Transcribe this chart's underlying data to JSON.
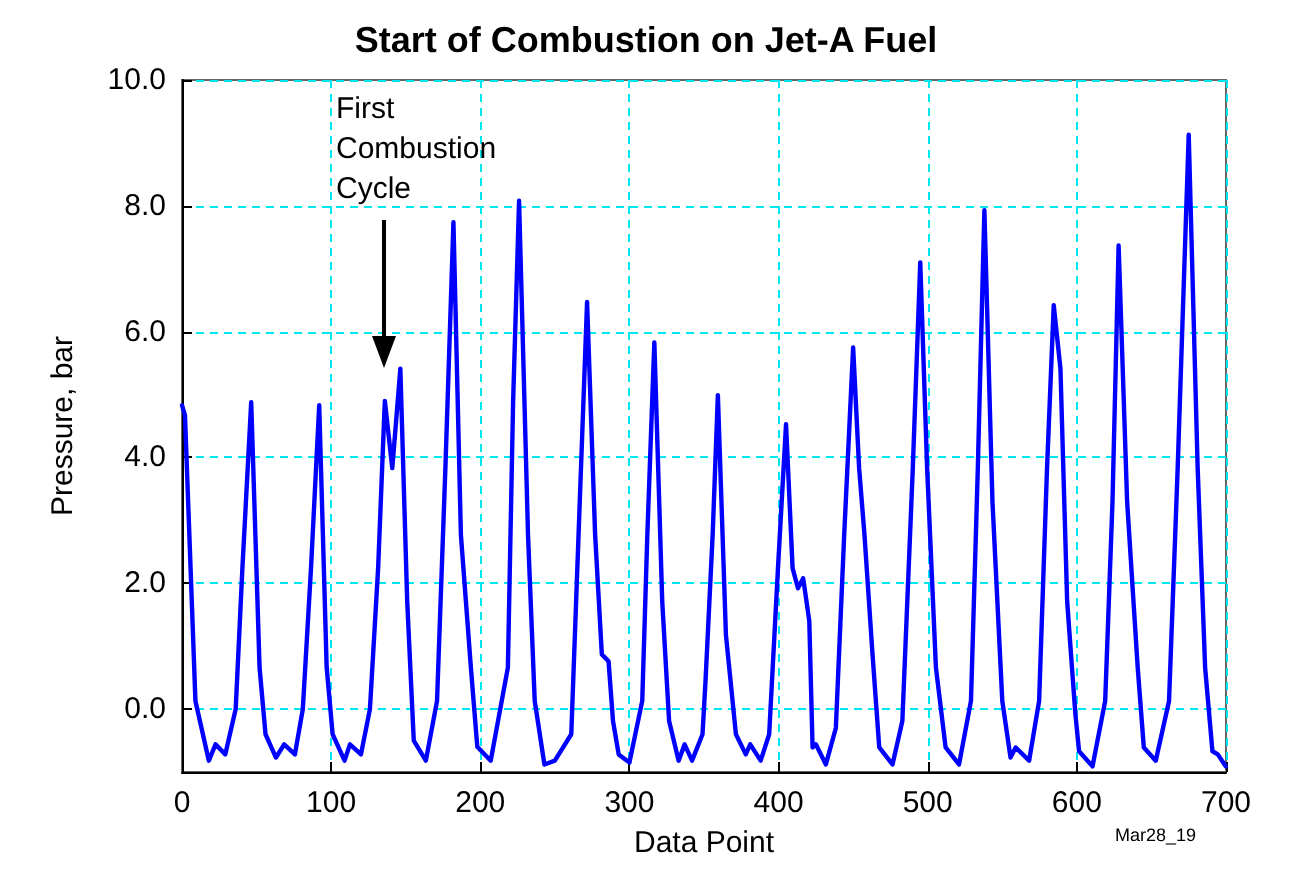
{
  "chart_data": {
    "type": "line",
    "title": "Start of Combustion on Jet-A Fuel",
    "xlabel": "Data Point",
    "ylabel": "Pressure, bar",
    "x": [
      0,
      2,
      9,
      18,
      22.5,
      29,
      36,
      40.5,
      46.4,
      52,
      56,
      63,
      68.5,
      75.7,
      81,
      86.5,
      92,
      97,
      101,
      109,
      112.6,
      120,
      126,
      131.5,
      136,
      141,
      146.4,
      151,
      155.4,
      163.5,
      171,
      176.6,
      182,
      187,
      193.7,
      198,
      207,
      218.5,
      222,
      226,
      232,
      236.5,
      243,
      250,
      261,
      266.7,
      271.6,
      277,
      281.5,
      286,
      289,
      292.8,
      300,
      308.6,
      312,
      316.7,
      322,
      326.6,
      333,
      337,
      342,
      349,
      351,
      355.8,
      359.3,
      364.7,
      371.4,
      378,
      381,
      388,
      393.7,
      399.6,
      405,
      409.4,
      413,
      416.5,
      420.6,
      422.8,
      425,
      431.7,
      438.4,
      444,
      450,
      454,
      457.6,
      463,
      467.5,
      476.4,
      483,
      490,
      495,
      499.6,
      505.5,
      512,
      521,
      529,
      533.6,
      538,
      543.4,
      550,
      555.5,
      559,
      568,
      574.7,
      580,
      584.5,
      589,
      593.5,
      599,
      601.5,
      610.5,
      619,
      623.9,
      628,
      633.7,
      640.8,
      644.9,
      652.9,
      661.8,
      667.6,
      675,
      681,
      686,
      690.9,
      694.5,
      699.8
    ],
    "series": [
      {
        "color": "#0000ff",
        "values": [
          4.83,
          4.67,
          0.13,
          -0.82,
          -0.56,
          -0.72,
          0,
          2.24,
          4.88,
          0.66,
          -0.4,
          -0.77,
          -0.56,
          -0.72,
          0,
          2.24,
          4.83,
          0.66,
          -0.4,
          -0.82,
          -0.56,
          -0.72,
          0,
          2.24,
          4.9,
          3.83,
          5.41,
          1.71,
          -0.5,
          -0.82,
          0.13,
          3.83,
          7.74,
          2.77,
          0.66,
          -0.6,
          -0.82,
          0.66,
          4.88,
          8.08,
          2.77,
          0.13,
          -0.88,
          -0.82,
          -0.4,
          3.3,
          6.47,
          2.77,
          0.87,
          0.76,
          -0.19,
          -0.72,
          -0.85,
          0.13,
          2.77,
          5.83,
          1.71,
          -0.19,
          -0.82,
          -0.56,
          -0.82,
          -0.4,
          0.44,
          2.77,
          4.99,
          1.18,
          -0.4,
          -0.72,
          -0.56,
          -0.82,
          -0.4,
          2.24,
          4.53,
          2.24,
          1.92,
          2.08,
          1.4,
          -0.61,
          -0.56,
          -0.88,
          -0.3,
          2.77,
          5.75,
          3.83,
          2.77,
          0.87,
          -0.61,
          -0.88,
          -0.19,
          3.83,
          7.1,
          3.83,
          0.66,
          -0.61,
          -0.88,
          0.13,
          3.83,
          7.93,
          3.3,
          0.13,
          -0.77,
          -0.61,
          -0.82,
          0.13,
          3.83,
          6.42,
          5.41,
          1.71,
          -0.08,
          -0.67,
          -0.91,
          0.13,
          3.3,
          7.37,
          3.3,
          0.66,
          -0.61,
          -0.82,
          0.13,
          3.83,
          9.13,
          3.83,
          0.66,
          -0.67,
          -0.72,
          -0.91
        ]
      }
    ],
    "xlim": [
      0,
      700
    ],
    "xticks": [
      0,
      100,
      200,
      300,
      400,
      500,
      600,
      700
    ],
    "ylim": [
      -1,
      10
    ],
    "yticks": [
      {
        "value": 0,
        "label": "0.0"
      },
      {
        "value": 2,
        "label": "2.0"
      },
      {
        "value": 4,
        "label": "4.0"
      },
      {
        "value": 6,
        "label": "6.0"
      },
      {
        "value": 8,
        "label": "8.0"
      },
      {
        "value": 10,
        "label": "10.0"
      }
    ],
    "grid": true,
    "marker": "none",
    "line_style": "solid",
    "annotations": [
      "First\nCombustion\nCycle",
      "Mar28_19"
    ]
  }
}
